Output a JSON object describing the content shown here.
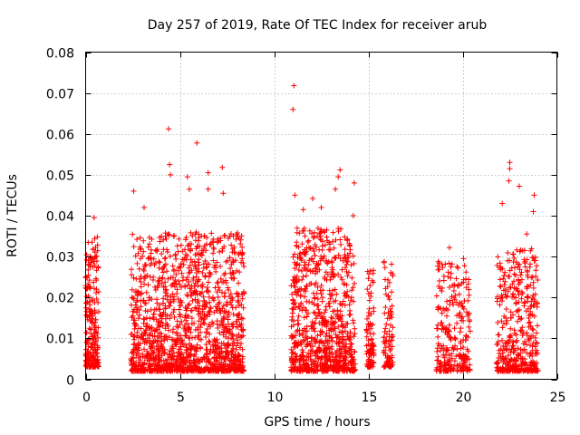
{
  "chart_data": {
    "type": "scatter",
    "title": "Day 257 of 2019, Rate Of TEC Index for receiver arub",
    "xlabel": "GPS time / hours",
    "ylabel": "ROTI / TECUs",
    "xlim": [
      0,
      25
    ],
    "ylim": [
      0,
      0.08
    ],
    "x_ticks": [
      0,
      5,
      10,
      15,
      20,
      25
    ],
    "x_tick_labels": [
      "0",
      "5",
      "10",
      "15",
      "20",
      "25"
    ],
    "y_ticks": [
      0,
      0.01,
      0.02,
      0.03,
      0.04,
      0.05,
      0.06,
      0.07,
      0.08
    ],
    "y_tick_labels": [
      "0",
      "0.01",
      "0.02",
      "0.03",
      "0.04",
      "0.05",
      "0.06",
      "0.07",
      "0.08"
    ],
    "grid": true,
    "marker": "+",
    "marker_color": "#ff0000",
    "series": [
      {
        "name": "ROTI",
        "clusters": [
          {
            "x_range": [
              0.0,
              0.7
            ],
            "y_range": [
              0.003,
              0.035
            ],
            "count": 230
          },
          {
            "x_range": [
              2.4,
              8.4
            ],
            "y_range": [
              0.002,
              0.036
            ],
            "count": 1500
          },
          {
            "x_range": [
              10.9,
              14.3
            ],
            "y_range": [
              0.002,
              0.037
            ],
            "count": 850
          },
          {
            "x_range": [
              14.9,
              15.3
            ],
            "y_range": [
              0.003,
              0.027
            ],
            "count": 90
          },
          {
            "x_range": [
              15.8,
              16.3
            ],
            "y_range": [
              0.003,
              0.029
            ],
            "count": 90
          },
          {
            "x_range": [
              18.6,
              20.4
            ],
            "y_range": [
              0.002,
              0.029
            ],
            "count": 260
          },
          {
            "x_range": [
              21.8,
              24.0
            ],
            "y_range": [
              0.002,
              0.032
            ],
            "count": 420
          }
        ],
        "highlights": [
          {
            "x": 0.45,
            "y": 0.0395
          },
          {
            "x": 2.55,
            "y": 0.046
          },
          {
            "x": 3.1,
            "y": 0.042
          },
          {
            "x": 4.4,
            "y": 0.0612
          },
          {
            "x": 4.45,
            "y": 0.0525
          },
          {
            "x": 4.5,
            "y": 0.05
          },
          {
            "x": 5.4,
            "y": 0.0495
          },
          {
            "x": 5.5,
            "y": 0.0465
          },
          {
            "x": 5.9,
            "y": 0.0578
          },
          {
            "x": 6.5,
            "y": 0.0505
          },
          {
            "x": 6.5,
            "y": 0.0465
          },
          {
            "x": 7.25,
            "y": 0.0518
          },
          {
            "x": 7.3,
            "y": 0.0455
          },
          {
            "x": 11.05,
            "y": 0.0718
          },
          {
            "x": 11.0,
            "y": 0.066
          },
          {
            "x": 11.1,
            "y": 0.045
          },
          {
            "x": 11.55,
            "y": 0.0415
          },
          {
            "x": 12.05,
            "y": 0.0442
          },
          {
            "x": 12.5,
            "y": 0.042
          },
          {
            "x": 13.25,
            "y": 0.0465
          },
          {
            "x": 13.5,
            "y": 0.0512
          },
          {
            "x": 13.4,
            "y": 0.0495
          },
          {
            "x": 14.25,
            "y": 0.048
          },
          {
            "x": 14.2,
            "y": 0.04
          },
          {
            "x": 19.3,
            "y": 0.0322
          },
          {
            "x": 20.05,
            "y": 0.0295
          },
          {
            "x": 22.5,
            "y": 0.053
          },
          {
            "x": 22.5,
            "y": 0.0515
          },
          {
            "x": 22.45,
            "y": 0.0485
          },
          {
            "x": 22.1,
            "y": 0.043
          },
          {
            "x": 23.0,
            "y": 0.0472
          },
          {
            "x": 23.8,
            "y": 0.045
          },
          {
            "x": 23.75,
            "y": 0.041
          },
          {
            "x": 23.4,
            "y": 0.0355
          }
        ]
      }
    ]
  }
}
